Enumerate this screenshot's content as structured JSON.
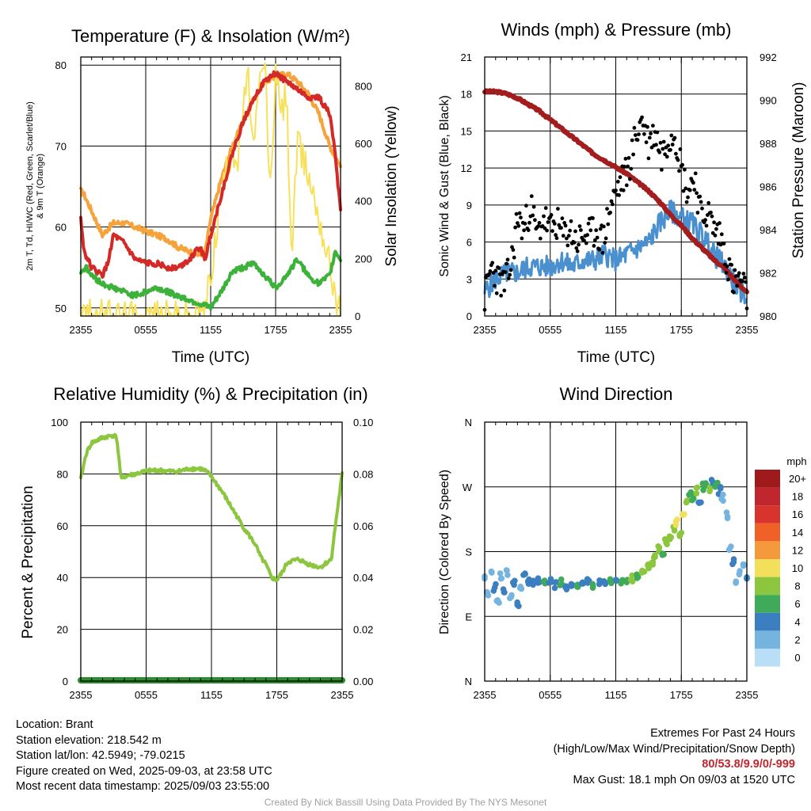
{
  "chart_data": [
    {
      "type": "line",
      "title": "Temperature (F) & Insolation (W/m²)",
      "xlabel": "Time (UTC)",
      "ylabel_left_lines": [
        "2m T, Td, HI/WC (Red, Green, Scarlet/Blue)",
        "& 9m T (Orange)"
      ],
      "ylabel_right": "Solar Insolation (Yellow)",
      "x_ticks": [
        "2355",
        "0555",
        "1155",
        "1755",
        "2355"
      ],
      "x_range_hours": [
        0,
        24
      ],
      "ylim_left": [
        49,
        81
      ],
      "y_ticks_left": [
        50,
        60,
        70,
        80
      ],
      "ylim_right": [
        0,
        900
      ],
      "y_ticks_right": [
        0,
        200,
        400,
        600,
        800
      ],
      "grid": true,
      "series": [
        {
          "color": "#f5a33a",
          "axis": "left",
          "t": [
            0,
            0.3,
            1,
            2,
            3,
            4,
            5,
            6,
            7,
            8,
            9,
            10,
            11,
            11.5,
            12,
            13,
            14,
            15,
            16,
            17,
            18,
            19,
            20,
            21,
            22,
            23,
            24
          ],
          "values": [
            64.5,
            64,
            62,
            59,
            60.5,
            60.5,
            60,
            59.5,
            59,
            58.5,
            57.5,
            57,
            56.5,
            57,
            61,
            66,
            70,
            73,
            76,
            78,
            78.5,
            79,
            78,
            76.5,
            74,
            70,
            67.5
          ]
        },
        {
          "color": "#f7e05a",
          "axis": "right",
          "t": [
            0,
            11,
            11.5,
            12,
            13,
            14,
            14.5,
            15,
            15.5,
            16,
            16.5,
            17,
            17.5,
            18,
            18.5,
            19,
            19.5,
            20,
            21,
            22,
            23,
            24
          ],
          "values": [
            0,
            0,
            30,
            150,
            420,
            600,
            520,
            740,
            820,
            560,
            800,
            890,
            420,
            850,
            700,
            780,
            200,
            600,
            500,
            350,
            180,
            0
          ]
        },
        {
          "color": "#d42a27",
          "axis": "left",
          "t": [
            0,
            0.3,
            1,
            2,
            2.5,
            3,
            4,
            5,
            6,
            7,
            8,
            9,
            10,
            11,
            11.5,
            12,
            13,
            14,
            15,
            16,
            17,
            18,
            19,
            20,
            21,
            22,
            23,
            23.5,
            24
          ],
          "values": [
            61,
            57,
            55,
            54,
            55.5,
            59,
            58,
            56,
            55.5,
            55.5,
            55,
            55,
            56,
            57.5,
            56,
            59,
            64,
            69,
            73,
            76,
            78,
            79,
            78,
            77,
            76,
            76,
            74,
            69,
            62
          ]
        },
        {
          "color": "#3db23a",
          "axis": "left",
          "t": [
            0,
            0.5,
            1,
            2,
            3,
            4,
            5,
            6,
            7,
            8,
            9,
            10,
            11,
            12,
            13,
            14,
            15,
            16,
            17,
            18,
            19,
            20,
            21,
            22,
            23,
            23.5,
            24
          ],
          "values": [
            54.5,
            55,
            54,
            53,
            52.5,
            52,
            51.5,
            52,
            52.5,
            52,
            51.5,
            51,
            50.5,
            50,
            52,
            54.5,
            55,
            55.5,
            54,
            52.5,
            54,
            56,
            54,
            53,
            54,
            57,
            56
          ]
        }
      ]
    },
    {
      "type": "line",
      "title": "Winds (mph) & Pressure (mb)",
      "xlabel": "Time (UTC)",
      "ylabel_left": "Sonic Wind & Gust (Blue, Black)",
      "ylabel_right": "Station Pressure (Maroon)",
      "x_ticks": [
        "2355",
        "0555",
        "1155",
        "1755",
        "2355"
      ],
      "x_range_hours": [
        0,
        24
      ],
      "ylim_left": [
        0,
        21
      ],
      "y_ticks_left": [
        0,
        3,
        6,
        9,
        12,
        15,
        18,
        21
      ],
      "ylim_right": [
        980,
        992
      ],
      "y_ticks_right": [
        980,
        982,
        984,
        986,
        988,
        990,
        992
      ],
      "grid": true,
      "series": [
        {
          "color": "#4a90cf",
          "style": "line",
          "t": [
            0,
            1,
            2,
            3,
            4,
            5,
            6,
            7,
            8,
            9,
            10,
            11,
            12,
            13,
            14,
            15,
            16,
            17,
            18,
            19,
            20,
            21,
            22,
            23,
            24
          ],
          "values": [
            2,
            3,
            3.5,
            3.5,
            4,
            4,
            4,
            4.5,
            4,
            4.5,
            4.5,
            5,
            4.5,
            5,
            5.5,
            6,
            7.5,
            8.5,
            8,
            7.5,
            6.5,
            5,
            4,
            2.5,
            1.5
          ]
        },
        {
          "color": "#000000",
          "style": "scatter",
          "t": [
            0,
            0.6,
            1.2,
            1.8,
            2.4,
            3.0,
            3.6,
            4.2,
            4.8,
            5.4,
            6.0,
            6.6,
            7.2,
            7.8,
            8.4,
            9.0,
            9.6,
            10.2,
            10.8,
            11.4,
            12.0,
            12.6,
            13.2,
            13.8,
            14.4,
            15.0,
            15.6,
            16.2,
            16.8,
            17.4,
            18.0,
            18.6,
            19.2,
            19.8,
            20.4,
            21.0,
            21.6,
            22.2,
            22.8,
            23.4,
            24.0
          ],
          "values": [
            1.5,
            4,
            3,
            2.5,
            4,
            8,
            7,
            9,
            6.5,
            8,
            7,
            7.5,
            6.5,
            7,
            6,
            6.5,
            6.5,
            7,
            6,
            8.5,
            10,
            11,
            12,
            14.5,
            16,
            14,
            15,
            13,
            14.5,
            15,
            12,
            10,
            11.5,
            8,
            8.5,
            7,
            6.5,
            4.5,
            2.5,
            3,
            1.5
          ]
        },
        {
          "color": "#a31d1f",
          "axis": "right",
          "style": "line",
          "t": [
            0,
            1,
            2,
            3,
            4,
            5,
            6,
            7,
            8,
            9,
            10,
            11,
            12,
            13,
            14,
            15,
            16,
            17,
            18,
            19,
            20,
            21,
            22,
            23,
            24
          ],
          "values": [
            990.4,
            990.4,
            990.3,
            990.1,
            989.8,
            989.5,
            989.1,
            988.7,
            988.3,
            987.9,
            987.5,
            987.2,
            986.9,
            986.6,
            986.2,
            985.8,
            985.3,
            984.7,
            984.2,
            983.6,
            983.1,
            982.6,
            982.2,
            981.6,
            981.1
          ]
        }
      ]
    },
    {
      "type": "line",
      "title": "Relative Humidity (%) & Precipitation (in)",
      "ylabel_left": "Percent & Precipitation",
      "x_ticks": [
        "2355",
        "0555",
        "1155",
        "1755",
        "2355"
      ],
      "x_range_hours": [
        0,
        24
      ],
      "ylim_left": [
        0,
        100
      ],
      "y_ticks_left": [
        0,
        20,
        40,
        60,
        80,
        100
      ],
      "ylim_right": [
        0,
        0.1
      ],
      "y_ticks_right": [
        "0.00",
        "0.02",
        "0.04",
        "0.06",
        "0.08",
        "0.10"
      ],
      "grid": true,
      "series": [
        {
          "color": "#8cc63f",
          "axis": "left",
          "t": [
            0,
            0.5,
            1,
            2,
            3,
            3.3,
            3.7,
            4,
            5,
            6,
            7,
            8,
            9,
            10,
            11,
            11.5,
            12,
            13,
            14,
            15,
            16,
            16.5,
            17,
            17.5,
            18,
            18.5,
            19,
            20,
            21,
            22,
            23,
            23.5,
            24
          ],
          "values": [
            78,
            88,
            92,
            94,
            95,
            94,
            78,
            79,
            80,
            81,
            81.5,
            81,
            81,
            82,
            82,
            81,
            79,
            73,
            66,
            59,
            53,
            48,
            45,
            40,
            39,
            42,
            46,
            47,
            45,
            44,
            47,
            64,
            80
          ]
        },
        {
          "color": "#2e8b2e",
          "axis": "right",
          "t": [
            0,
            24
          ],
          "values": [
            0,
            0
          ]
        }
      ]
    },
    {
      "type": "scatter",
      "title": "Wind Direction",
      "ylabel_left": "Direction (Colored By Speed)",
      "x_ticks": [
        "2355",
        "0555",
        "1155",
        "1755",
        "2355"
      ],
      "x_range_hours": [
        0,
        24
      ],
      "y_ticks": [
        "N",
        "E",
        "S",
        "W",
        "N"
      ],
      "ylim_degrees": [
        0,
        360
      ],
      "grid": true,
      "colorbar_title": "mph",
      "colorbar_labels": [
        "20+",
        "18",
        "16",
        "14",
        "12",
        "10",
        "8",
        "6",
        "4",
        "2",
        "0"
      ],
      "colorbar_colors": [
        "#9e1a1d",
        "#c0262d",
        "#d8332c",
        "#ef6127",
        "#f59a3c",
        "#f2e05a",
        "#8cc63f",
        "#3eaa5a",
        "#3b7fc0",
        "#76b4e0",
        "#b8dff5"
      ],
      "points": [
        {
          "t": 0.0,
          "dir": 145,
          "speed": 2
        },
        {
          "t": 0.3,
          "dir": 120,
          "speed": 1
        },
        {
          "t": 0.6,
          "dir": 155,
          "speed": 2
        },
        {
          "t": 0.9,
          "dir": 130,
          "speed": 3
        },
        {
          "t": 1.2,
          "dir": 112,
          "speed": 1
        },
        {
          "t": 1.5,
          "dir": 145,
          "speed": 2
        },
        {
          "t": 1.8,
          "dir": 125,
          "speed": 3
        },
        {
          "t": 2.1,
          "dir": 150,
          "speed": 1
        },
        {
          "t": 2.4,
          "dir": 118,
          "speed": 2
        },
        {
          "t": 2.7,
          "dir": 138,
          "speed": 3
        },
        {
          "t": 3.0,
          "dir": 106,
          "speed": 4
        },
        {
          "t": 3.3,
          "dir": 132,
          "speed": 2
        },
        {
          "t": 3.6,
          "dir": 145,
          "speed": 4
        },
        {
          "t": 4.0,
          "dir": 140,
          "speed": 4
        },
        {
          "t": 4.5,
          "dir": 135,
          "speed": 4
        },
        {
          "t": 5.0,
          "dir": 138,
          "speed": 4
        },
        {
          "t": 5.5,
          "dir": 136,
          "speed": 5
        },
        {
          "t": 6.0,
          "dir": 140,
          "speed": 4
        },
        {
          "t": 6.5,
          "dir": 134,
          "speed": 4
        },
        {
          "t": 7.0,
          "dir": 138,
          "speed": 5
        },
        {
          "t": 7.5,
          "dir": 132,
          "speed": 4
        },
        {
          "t": 8.0,
          "dir": 137,
          "speed": 4
        },
        {
          "t": 8.5,
          "dir": 135,
          "speed": 5
        },
        {
          "t": 9.0,
          "dir": 133,
          "speed": 4
        },
        {
          "t": 9.5,
          "dir": 138,
          "speed": 4
        },
        {
          "t": 10.0,
          "dir": 134,
          "speed": 5
        },
        {
          "t": 10.5,
          "dir": 136,
          "speed": 4
        },
        {
          "t": 11.0,
          "dir": 135,
          "speed": 4
        },
        {
          "t": 11.5,
          "dir": 137,
          "speed": 5
        },
        {
          "t": 12.0,
          "dir": 136,
          "speed": 4
        },
        {
          "t": 12.5,
          "dir": 140,
          "speed": 5
        },
        {
          "t": 13.0,
          "dir": 138,
          "speed": 6
        },
        {
          "t": 13.5,
          "dir": 142,
          "speed": 7
        },
        {
          "t": 14.0,
          "dir": 148,
          "speed": 6
        },
        {
          "t": 14.5,
          "dir": 152,
          "speed": 8
        },
        {
          "t": 15.0,
          "dir": 158,
          "speed": 7
        },
        {
          "t": 15.3,
          "dir": 165,
          "speed": 8
        },
        {
          "t": 15.6,
          "dir": 175,
          "speed": 7
        },
        {
          "t": 16.0,
          "dir": 185,
          "speed": 8
        },
        {
          "t": 16.3,
          "dir": 180,
          "speed": 6
        },
        {
          "t": 16.6,
          "dir": 195,
          "speed": 8
        },
        {
          "t": 17.0,
          "dir": 200,
          "speed": 7
        },
        {
          "t": 17.3,
          "dir": 210,
          "speed": 8
        },
        {
          "t": 17.6,
          "dir": 220,
          "speed": 9
        },
        {
          "t": 17.9,
          "dir": 205,
          "speed": 7
        },
        {
          "t": 18.2,
          "dir": 230,
          "speed": 10
        },
        {
          "t": 18.5,
          "dir": 250,
          "speed": 8
        },
        {
          "t": 18.8,
          "dir": 260,
          "speed": 6
        },
        {
          "t": 19.1,
          "dir": 255,
          "speed": 5
        },
        {
          "t": 19.4,
          "dir": 265,
          "speed": 8
        },
        {
          "t": 19.7,
          "dir": 250,
          "speed": 4
        },
        {
          "t": 20.0,
          "dir": 270,
          "speed": 6
        },
        {
          "t": 20.3,
          "dir": 275,
          "speed": 5
        },
        {
          "t": 20.6,
          "dir": 268,
          "speed": 7
        },
        {
          "t": 20.9,
          "dir": 280,
          "speed": 4
        },
        {
          "t": 21.2,
          "dir": 272,
          "speed": 6
        },
        {
          "t": 21.5,
          "dir": 265,
          "speed": 3
        },
        {
          "t": 21.8,
          "dir": 255,
          "speed": 2
        },
        {
          "t": 22.2,
          "dir": 230,
          "speed": 1
        },
        {
          "t": 22.5,
          "dir": 185,
          "speed": 2
        },
        {
          "t": 22.8,
          "dir": 165,
          "speed": 3
        },
        {
          "t": 23.1,
          "dir": 140,
          "speed": 2
        },
        {
          "t": 23.4,
          "dir": 150,
          "speed": 1
        },
        {
          "t": 23.7,
          "dir": 160,
          "speed": 2
        },
        {
          "t": 24.0,
          "dir": 145,
          "speed": 3
        }
      ]
    }
  ],
  "info": {
    "location": "Location: Brant",
    "elevation": "Station elevation: 218.542 m",
    "latlon": "Station lat/lon: 42.5949; -79.0215",
    "created": "Figure created on Wed, 2025-09-03, at 23:58 UTC",
    "recent": "Most recent data timestamp: 2025/09/03 23:55:00"
  },
  "extremes": {
    "title": "Extremes For Past 24 Hours",
    "subtitle": "(High/Low/Max Wind/Precipitation/Snow Depth)",
    "values": "80/53.8/9.9/0/-999",
    "max_gust": "Max Gust: 18.1 mph On 09/03 at 1520 UTC"
  },
  "footer": "Created By Nick Bassill Using Data Provided By The NYS Mesonet"
}
